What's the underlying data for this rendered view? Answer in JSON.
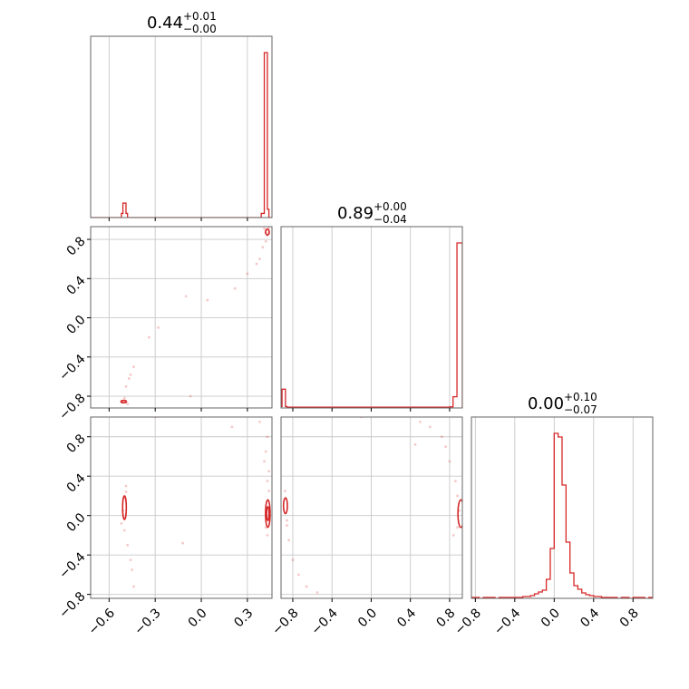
{
  "colors": {
    "series": "#d62728",
    "grid": "#c8c8c8",
    "frame": "#666666"
  },
  "chart_data": {
    "type": "corner",
    "parameters": [
      "",
      "",
      ""
    ],
    "ranges": [
      [
        -0.72,
        0.46
      ],
      [
        -0.92,
        0.93
      ],
      [
        -0.84,
        1.0
      ]
    ],
    "ticks": [
      {
        "values": [
          -0.6,
          -0.3,
          0.0,
          0.3
        ],
        "labels": [
          "−0.6",
          "−0.3",
          "0.0",
          "0.3"
        ]
      },
      {
        "values": [
          -0.8,
          -0.4,
          0.0,
          0.4,
          0.8
        ],
        "labels": [
          "−0.8",
          "−0.4",
          "0.0",
          "0.4",
          "0.8"
        ]
      },
      {
        "values": [
          -0.8,
          -0.4,
          0.0,
          0.4,
          0.8
        ],
        "labels": [
          "−0.8",
          "−0.4",
          "0.0",
          "0.4",
          "0.8"
        ]
      }
    ],
    "titles": [
      {
        "median": "0.44",
        "plus": "+0.01",
        "minus": "−0.00"
      },
      {
        "median": "0.89",
        "plus": "+0.00",
        "minus": "−0.04"
      },
      {
        "median": "0.00",
        "plus": "+0.10",
        "minus": "−0.07"
      }
    ],
    "histograms": [
      {
        "edges": [
          -0.72,
          -0.52,
          -0.51,
          -0.5,
          -0.49,
          -0.48,
          0.39,
          0.41,
          0.42,
          0.43,
          0.44,
          0.46
        ],
        "counts": [
          0,
          4,
          14,
          14,
          4,
          0,
          4,
          160,
          160,
          8,
          0
        ]
      },
      {
        "edges": [
          -0.92,
          -0.91,
          -0.895,
          -0.875,
          -0.86,
          0.8,
          0.835,
          0.855,
          0.875,
          0.895,
          0.93
        ],
        "counts": [
          4,
          50,
          50,
          4,
          2,
          3,
          30,
          30,
          440,
          440
        ]
      },
      {
        "edges": [
          -0.84,
          -0.8,
          -0.76,
          -0.72,
          -0.68,
          -0.64,
          -0.6,
          -0.56,
          -0.52,
          -0.48,
          -0.44,
          -0.4,
          -0.36,
          -0.32,
          -0.28,
          -0.24,
          -0.2,
          -0.16,
          -0.12,
          -0.08,
          -0.04,
          0.0,
          0.04,
          0.08,
          0.12,
          0.16,
          0.2,
          0.24,
          0.28,
          0.32,
          0.36,
          0.4,
          0.44,
          0.48,
          0.52,
          0.56,
          0.6,
          0.64,
          0.68,
          0.72,
          0.76,
          0.8,
          0.84,
          0.88,
          0.92,
          0.96,
          1.0
        ],
        "counts": [
          1,
          1,
          0,
          1,
          1,
          1,
          0,
          1,
          1,
          1,
          1,
          1,
          1,
          2,
          2,
          3,
          5,
          7,
          9,
          21,
          55,
          182,
          178,
          125,
          62,
          28,
          14,
          10,
          6,
          4,
          3,
          2,
          2,
          1,
          1,
          1,
          1,
          0,
          1,
          1,
          0,
          1,
          1,
          1,
          0,
          1
        ]
      }
    ],
    "scatter": {
      "p1_vs_p0": [
        [
          0.42,
          0.87
        ],
        [
          0.43,
          0.9
        ],
        [
          0.44,
          0.86
        ],
        [
          0.41,
          0.91
        ],
        [
          0.43,
          0.84
        ],
        [
          0.42,
          0.78
        ],
        [
          0.4,
          0.72
        ],
        [
          0.36,
          0.55
        ],
        [
          0.3,
          0.45
        ],
        [
          0.22,
          0.3
        ],
        [
          -0.1,
          0.22
        ],
        [
          0.04,
          0.18
        ],
        [
          -0.28,
          -0.1
        ],
        [
          -0.34,
          -0.2
        ],
        [
          -0.44,
          -0.5
        ],
        [
          -0.47,
          -0.62
        ],
        [
          -0.49,
          -0.7
        ],
        [
          -0.5,
          -0.82
        ],
        [
          -0.51,
          -0.85
        ],
        [
          -0.48,
          -0.88
        ],
        [
          -0.46,
          -0.58
        ],
        [
          -0.07,
          -0.8
        ],
        [
          0.38,
          0.6
        ],
        [
          0.44,
          0.92
        ]
      ],
      "p2_vs_p0": [
        [
          -0.49,
          0.24
        ],
        [
          -0.5,
          0.18
        ],
        [
          -0.51,
          0.05
        ],
        [
          -0.52,
          -0.08
        ],
        [
          -0.5,
          -0.15
        ],
        [
          -0.48,
          -0.3
        ],
        [
          -0.46,
          -0.45
        ],
        [
          -0.45,
          -0.55
        ],
        [
          -0.44,
          -0.72
        ],
        [
          -0.49,
          0.3
        ],
        [
          0.43,
          0.8
        ],
        [
          0.42,
          0.65
        ],
        [
          0.44,
          0.45
        ],
        [
          0.43,
          0.35
        ],
        [
          0.44,
          0.25
        ],
        [
          0.42,
          -0.12
        ],
        [
          0.43,
          -0.2
        ],
        [
          0.44,
          -0.05
        ],
        [
          0.41,
          0.55
        ],
        [
          0.38,
          0.95
        ],
        [
          -0.12,
          -0.28
        ],
        [
          -0.3,
          1.0
        ],
        [
          0.2,
          0.9
        ]
      ],
      "p1_vs_p2": [
        [
          -0.88,
          0.25
        ],
        [
          -0.86,
          -0.05
        ],
        [
          -0.84,
          -0.25
        ],
        [
          -0.8,
          -0.45
        ],
        [
          -0.74,
          -0.6
        ],
        [
          -0.66,
          -0.72
        ],
        [
          -0.55,
          -0.78
        ],
        [
          -0.86,
          -0.1
        ],
        [
          0.72,
          0.8
        ],
        [
          0.8,
          0.55
        ],
        [
          0.86,
          0.35
        ],
        [
          0.88,
          0.2
        ],
        [
          0.9,
          0.05
        ],
        [
          0.88,
          -0.12
        ],
        [
          0.84,
          -0.2
        ],
        [
          0.6,
          0.9
        ],
        [
          0.5,
          0.95
        ],
        [
          -0.1,
          1.0
        ],
        [
          0.45,
          0.72
        ],
        [
          0.76,
          0.7
        ]
      ]
    },
    "contours": {
      "p1_vs_p0": [
        {
          "cx": 0.43,
          "cy": 0.875,
          "rx": 0.012,
          "ry": 0.03
        },
        {
          "cx": -0.505,
          "cy": -0.855,
          "rx": 0.018,
          "ry": 0.012
        }
      ],
      "p2_vs_p0": [
        {
          "cx": 0.433,
          "cy": 0.02,
          "rx": 0.015,
          "ry": 0.14
        },
        {
          "cx": 0.433,
          "cy": 0.02,
          "rx": 0.008,
          "ry": 0.07
        },
        {
          "cx": -0.5,
          "cy": 0.08,
          "rx": 0.012,
          "ry": 0.12
        }
      ],
      "p1_vs_p2": [
        {
          "cx": -0.875,
          "cy": 0.1,
          "rx": 0.02,
          "ry": 0.08
        },
        {
          "cx": 0.915,
          "cy": 0.02,
          "rx": 0.03,
          "ry": 0.14
        }
      ]
    }
  }
}
